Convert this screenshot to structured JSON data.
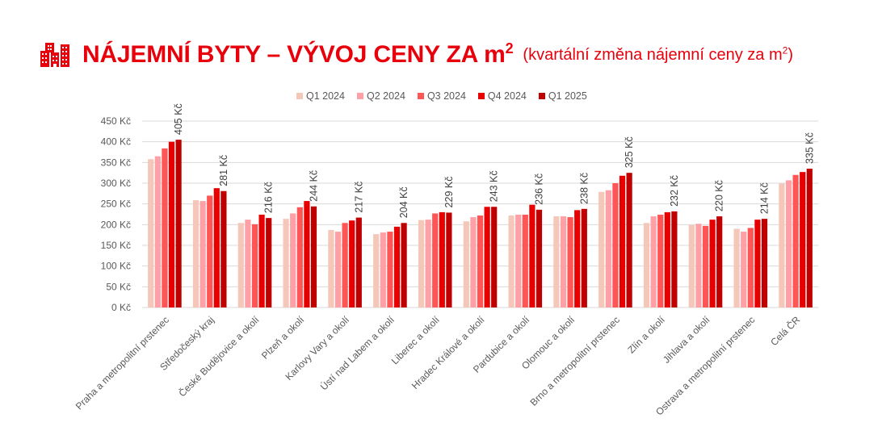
{
  "header": {
    "icon": "buildings-icon",
    "title_main": "NÁJEMNÍ BYTY – VÝVOJ CENY ZA m",
    "title_main_sup": "2",
    "title_sub": "(kvartální změna nájemní ceny za m",
    "title_sub_sup": "2",
    "title_sub_end": ")",
    "accent_color": "#E8000B"
  },
  "legend": [
    {
      "label": "Q1 2024",
      "color": "#F4C7B8"
    },
    {
      "label": "Q2 2024",
      "color": "#FF9FA6"
    },
    {
      "label": "Q3 2024",
      "color": "#FF5555"
    },
    {
      "label": "Q4 2024",
      "color": "#E80000"
    },
    {
      "label": "Q1 2025",
      "color": "#C00000"
    }
  ],
  "chart_data": {
    "type": "bar",
    "title": "NÁJEMNÍ BYTY – VÝVOJ CENY ZA m2",
    "subtitle": "(kvartální změna nájemní ceny za m2)",
    "xlabel": "",
    "ylabel": "",
    "ylim": [
      0,
      450
    ],
    "yticks": [
      0,
      50,
      100,
      150,
      200,
      250,
      300,
      350,
      400,
      450
    ],
    "ytick_labels": [
      "0 Kč",
      "50 Kč",
      "100 Kč",
      "150 Kč",
      "200 Kč",
      "250 Kč",
      "300 Kč",
      "350 Kč",
      "400 Kč",
      "450 Kč"
    ],
    "grid": true,
    "legend_position": "top",
    "categories": [
      "Praha a metropolitní prstenec",
      "Středočeský kraj",
      "České Budějovice a okolí",
      "Plzeň a okolí",
      "Karlovy Vary a okolí",
      "Ústí nad Labem a okolí",
      "Liberec a okolí",
      "Hradec Králové a okolí",
      "Pardubice a okolí",
      "Olomouc a okolí",
      "Brno a metropolitní prstenec",
      "Zlín a okolí",
      "Jihlava a okolí",
      "Ostrava a metropolitní prstenec",
      "Celá ČR"
    ],
    "series": [
      {
        "name": "Q1 2024",
        "color": "#F4C7B8",
        "values": [
          358,
          259,
          204,
          214,
          187,
          177,
          211,
          208,
          222,
          220,
          279,
          204,
          199,
          190,
          299
        ]
      },
      {
        "name": "Q2 2024",
        "color": "#FF9FA6",
        "values": [
          365,
          257,
          212,
          227,
          183,
          181,
          212,
          218,
          224,
          220,
          283,
          220,
          202,
          183,
          307
        ]
      },
      {
        "name": "Q3 2024",
        "color": "#FF5555",
        "values": [
          384,
          270,
          201,
          242,
          204,
          183,
          227,
          222,
          224,
          218,
          300,
          224,
          197,
          192,
          320
        ]
      },
      {
        "name": "Q4 2024",
        "color": "#E80000",
        "values": [
          400,
          288,
          224,
          257,
          210,
          195,
          230,
          243,
          248,
          235,
          318,
          230,
          212,
          212,
          327
        ]
      },
      {
        "name": "Q1 2025",
        "color": "#C00000",
        "values": [
          405,
          281,
          216,
          244,
          217,
          204,
          229,
          243,
          236,
          238,
          325,
          232,
          220,
          214,
          335
        ]
      }
    ],
    "data_labels": {
      "series": "Q1 2025",
      "values": [
        "405 Kč",
        "281 Kč",
        "216 Kč",
        "244 Kč",
        "217 Kč",
        "204 Kč",
        "229 Kč",
        "243 Kč",
        "236 Kč",
        "238 Kč",
        "325 Kč",
        "232 Kč",
        "220 Kč",
        "214 Kč",
        "335 Kč"
      ]
    }
  }
}
